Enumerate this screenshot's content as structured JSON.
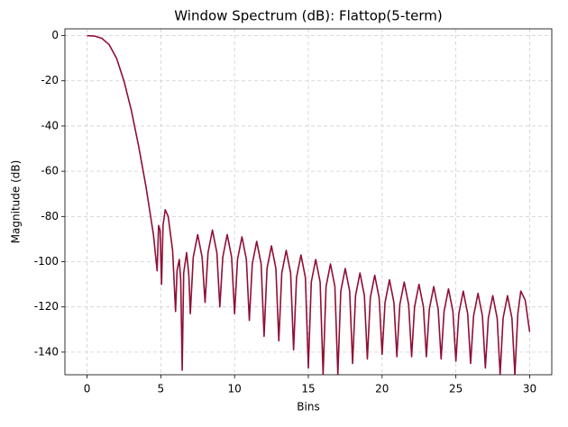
{
  "chart_data": {
    "type": "line",
    "title": "Window Spectrum (dB): Flattop(5-term)",
    "x_label": "Bins",
    "y_label": "Magnitude (dB)",
    "color": "#8f0f35",
    "grid": true,
    "xlim": [
      -1.5,
      31.5
    ],
    "ylim": [
      -150,
      3
    ],
    "xticks": [
      0,
      5,
      10,
      15,
      20,
      25,
      30
    ],
    "yticks": [
      0,
      -20,
      -40,
      -60,
      -80,
      -100,
      -120,
      -140
    ],
    "x": [
      0,
      0.5,
      1,
      1.5,
      2,
      2.5,
      3,
      3.5,
      4,
      4.5,
      4.75,
      4.85,
      4.95,
      5.05,
      5.15,
      5.3,
      5.5,
      5.8,
      6,
      6.1,
      6.25,
      6.35,
      6.45,
      6.55,
      6.75,
      6.9,
      7,
      7.2,
      7.5,
      7.8,
      8,
      8.2,
      8.5,
      8.8,
      9,
      9.2,
      9.5,
      9.8,
      10,
      10.2,
      10.5,
      10.8,
      11,
      11.2,
      11.5,
      11.8,
      12,
      12.2,
      12.5,
      12.8,
      13,
      13.2,
      13.5,
      13.8,
      14,
      14.2,
      14.5,
      14.8,
      15,
      15.2,
      15.5,
      15.8,
      16,
      16.2,
      16.5,
      16.8,
      17,
      17.2,
      17.5,
      17.8,
      18,
      18.2,
      18.5,
      18.8,
      19,
      19.2,
      19.5,
      19.8,
      20,
      20.2,
      20.5,
      20.8,
      21,
      21.2,
      21.5,
      21.8,
      22,
      22.2,
      22.5,
      22.8,
      23,
      23.2,
      23.5,
      23.8,
      24,
      24.2,
      24.5,
      24.8,
      25,
      25.2,
      25.5,
      25.8,
      26,
      26.2,
      26.5,
      26.8,
      27,
      27.2,
      27.5,
      27.8,
      28,
      28.2,
      28.5,
      28.8,
      29,
      29.2,
      29.4,
      29.7,
      30
    ],
    "values": [
      0,
      -0.2,
      -1.2,
      -4,
      -10,
      -20,
      -33,
      -49,
      -67,
      -88,
      -104,
      -84,
      -86,
      -110,
      -84,
      -77,
      -80,
      -95,
      -122,
      -104,
      -99,
      -108,
      -148,
      -105,
      -96,
      -106,
      -123,
      -98,
      -88,
      -98,
      -118,
      -96,
      -86,
      -96,
      -120,
      -98,
      -88,
      -98,
      -123,
      -99,
      -89,
      -99,
      -126,
      -101,
      -91,
      -101,
      -133,
      -103,
      -93,
      -103,
      -135,
      -105,
      -95,
      -105,
      -139,
      -107,
      -97,
      -107,
      -147,
      -109,
      -99,
      -109,
      -150,
      -111,
      -101,
      -111,
      -150,
      -113,
      -103,
      -113,
      -145,
      -115,
      -105,
      -115,
      -143,
      -116,
      -106,
      -116,
      -141,
      -118,
      -108,
      -118,
      -142,
      -119,
      -109,
      -119,
      -142,
      -120,
      -110,
      -120,
      -142,
      -121,
      -111,
      -121,
      -143,
      -122,
      -112,
      -122,
      -144,
      -123,
      -113,
      -123,
      -145,
      -124,
      -114,
      -124,
      -147,
      -125,
      -115,
      -125,
      -150,
      -125,
      -115,
      -125,
      -150,
      -123,
      -113,
      -117,
      -131
    ]
  }
}
